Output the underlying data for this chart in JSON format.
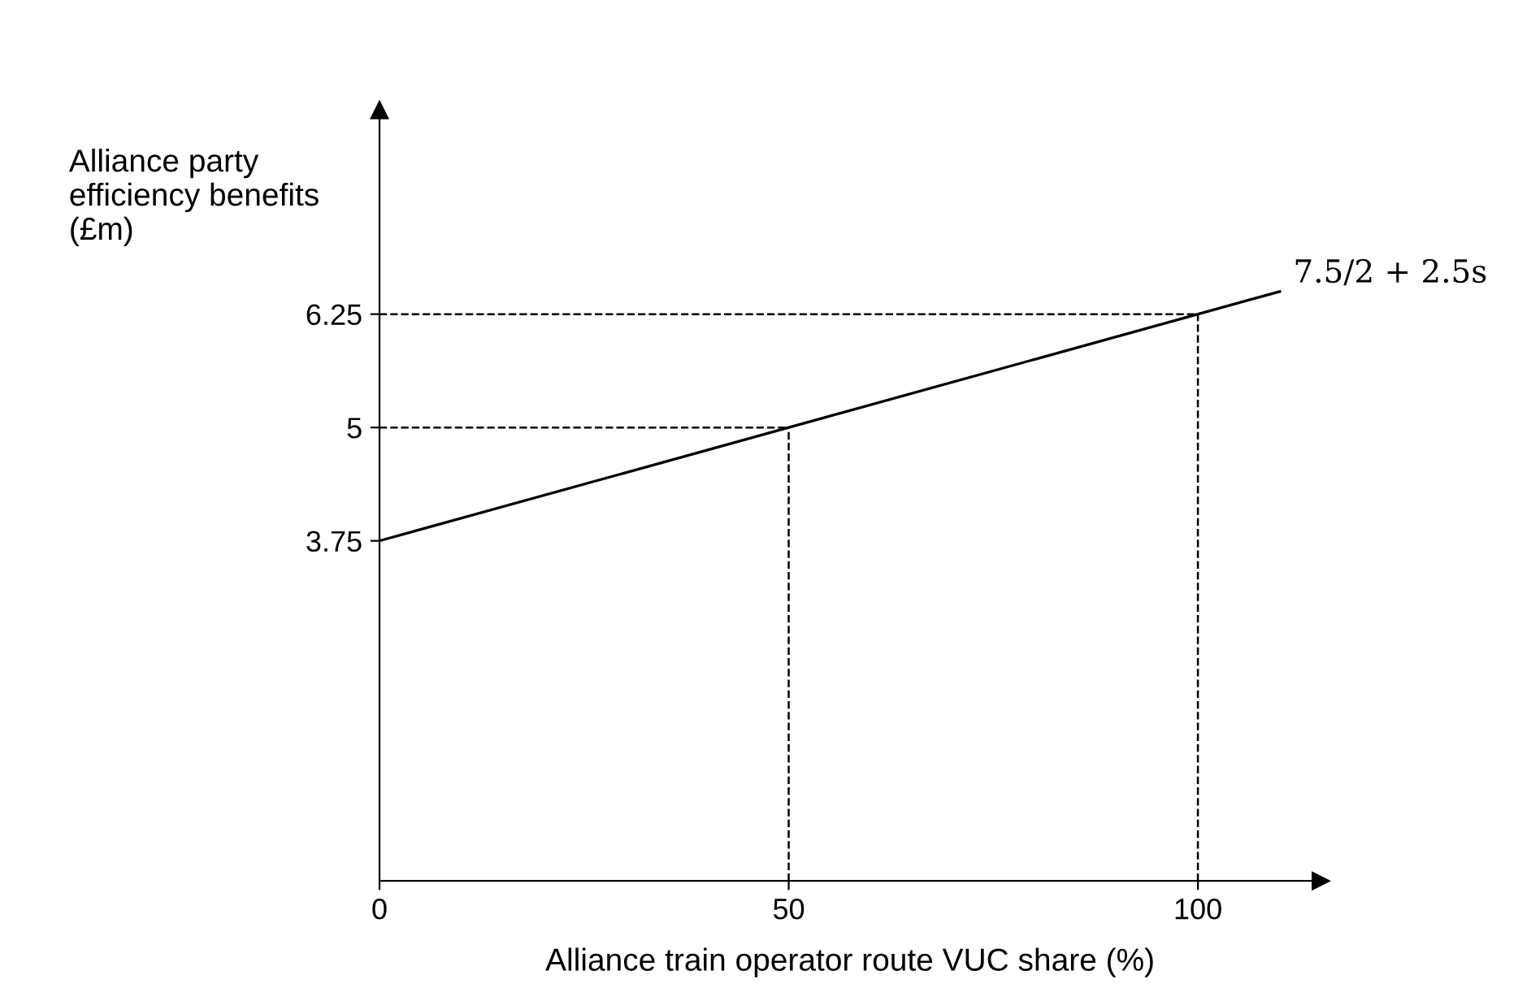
{
  "chart_data": {
    "type": "line",
    "xlabel": "Alliance train operator route VUC share (%)",
    "ylabel": "Alliance party\nefficiency benefits\n(£m)",
    "x": [
      0,
      50,
      100,
      110
    ],
    "series": [
      {
        "color": "#000000",
        "values": [
          3.75,
          5,
          6.25,
          6.5
        ]
      }
    ],
    "xlim": [
      0,
      115
    ],
    "ylim": [
      0,
      8.5
    ],
    "xticks": [
      0,
      50,
      100
    ],
    "yticks": [
      3.75,
      5,
      6.25
    ],
    "ref_lines": [
      {
        "axis": "y",
        "value": 5,
        "label": null,
        "line_style": "dashed",
        "color": "#000000"
      },
      {
        "axis": "y",
        "value": 6.25,
        "label": null,
        "line_style": "dashed",
        "color": "#000000"
      },
      {
        "axis": "x",
        "value": 50,
        "label": null,
        "line_style": "dashed",
        "color": "#000000"
      },
      {
        "axis": "x",
        "value": 100,
        "label": null,
        "line_style": "dashed",
        "color": "#000000"
      }
    ],
    "annotations": [
      {
        "text": "7.5/2 + 2.5s",
        "x": 110,
        "y": 6.5
      }
    ],
    "grid": false,
    "legend": false,
    "marker": "none",
    "line_style": "solid"
  }
}
